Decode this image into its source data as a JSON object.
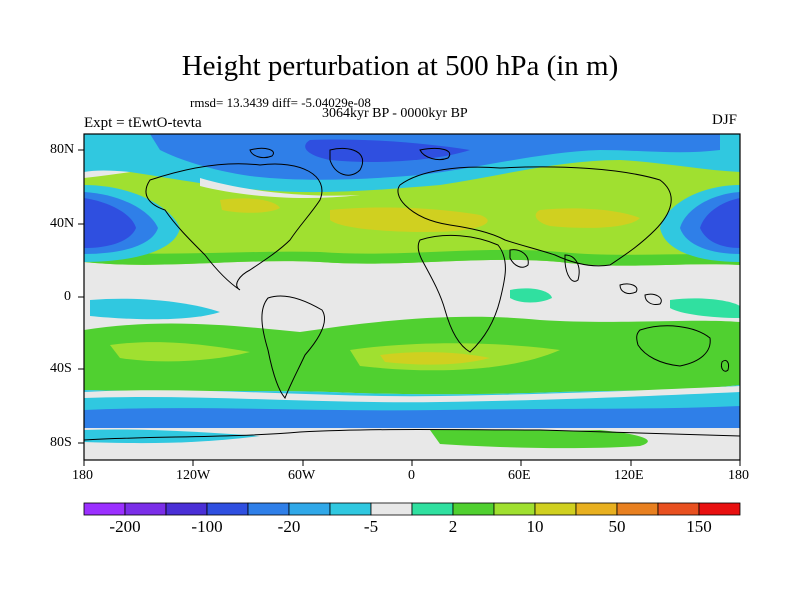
{
  "title": "Height perturbation at 500 hPa (in m)",
  "stats_line": "rmsd= 13.3439 diff= -5.04029e-08",
  "period": "3064kyr BP - 0000kyr BP",
  "experiment": "Expt = tEwtO-tevta",
  "season": "DJF",
  "lat_labels": [
    "80N",
    "40N",
    "0",
    "40S",
    "80S"
  ],
  "lon_labels": [
    "180",
    "120W",
    "60W",
    "0",
    "60E",
    "120E",
    "180"
  ],
  "colorbar": {
    "colors": [
      "#9b30ff",
      "#7b2ee8",
      "#4a2fd6",
      "#2f4fe0",
      "#2f7fe8",
      "#30a8e8",
      "#30c8e0",
      "#e8e8e8",
      "#30e0a0",
      "#50d030",
      "#a0e030",
      "#d0d020",
      "#e8b020",
      "#e88020",
      "#e85020",
      "#e81010"
    ],
    "labels": [
      "-200",
      "-100",
      "-20",
      "-5",
      "2",
      "10",
      "50",
      "150"
    ]
  }
}
